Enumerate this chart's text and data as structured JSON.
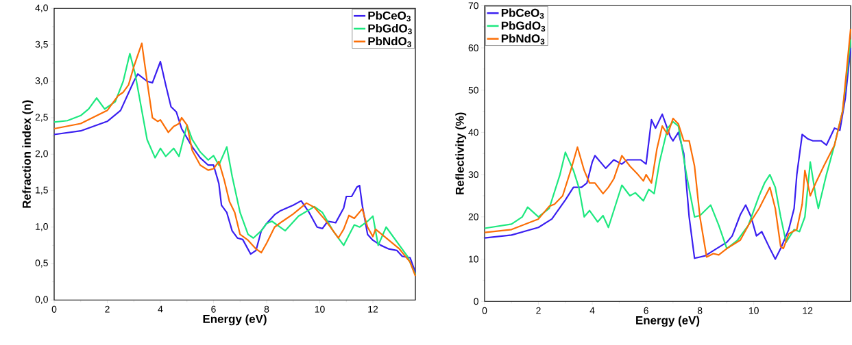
{
  "chart_data": [
    {
      "type": "line",
      "xlabel": "Energy (eV)",
      "ylabel": "Refraction index (n)",
      "xlim": [
        0,
        13.6
      ],
      "ylim": [
        0,
        4
      ],
      "xticks": [
        0,
        2,
        4,
        6,
        8,
        10,
        12
      ],
      "yticks": [
        {
          "value": 0,
          "label": "0,0"
        },
        {
          "value": 0.5,
          "label": "0,5"
        },
        {
          "value": 1,
          "label": "1,0"
        },
        {
          "value": 1.5,
          "label": "1,5"
        },
        {
          "value": 2,
          "label": "2,0"
        },
        {
          "value": 2.5,
          "label": "2,5"
        },
        {
          "value": 3,
          "label": "3,0"
        },
        {
          "value": 3.5,
          "label": "3,5"
        },
        {
          "value": 4,
          "label": "4,0"
        }
      ],
      "legend": "top right",
      "grid": false,
      "line_style": "solid",
      "marker": "none",
      "series": [
        {
          "name": "PbCeO$_{3}$",
          "color": "#3a1ff0",
          "x": [
            0,
            1,
            2,
            2.5,
            3,
            3.15,
            3.5,
            3.7,
            4.0,
            4.2,
            4.4,
            4.6,
            4.8,
            5.2,
            5.5,
            5.8,
            6.0,
            6.2,
            6.3,
            6.5,
            6.7,
            6.9,
            7.1,
            7.4,
            7.6,
            7.8,
            8.0,
            8.3,
            8.5,
            9.0,
            9.3,
            9.6,
            9.9,
            10.1,
            10.3,
            10.6,
            10.9,
            11.0,
            11.2,
            11.4,
            11.5,
            11.6,
            11.8,
            12.0,
            12.3,
            12.6,
            12.9,
            13.1,
            13.4,
            13.6
          ],
          "values": [
            2.27,
            2.32,
            2.45,
            2.6,
            3.0,
            3.1,
            3.0,
            2.98,
            3.27,
            2.95,
            2.65,
            2.58,
            2.35,
            2.1,
            1.95,
            1.85,
            1.85,
            1.6,
            1.3,
            1.2,
            0.95,
            0.85,
            0.83,
            0.63,
            0.68,
            0.95,
            1.05,
            1.17,
            1.22,
            1.3,
            1.36,
            1.2,
            1.0,
            0.98,
            1.08,
            1.06,
            1.26,
            1.42,
            1.42,
            1.55,
            1.57,
            1.3,
            0.9,
            0.82,
            0.75,
            0.7,
            0.68,
            0.6,
            0.58,
            0.38
          ]
        },
        {
          "name": "PbGdO$_{3}$",
          "color": "#1de87f",
          "x": [
            0,
            0.5,
            1.0,
            1.3,
            1.6,
            1.9,
            2.3,
            2.6,
            2.85,
            3.05,
            3.3,
            3.5,
            3.8,
            4.0,
            4.2,
            4.5,
            4.7,
            5.0,
            5.2,
            5.5,
            5.8,
            6.0,
            6.2,
            6.5,
            6.7,
            7.0,
            7.3,
            7.5,
            7.8,
            8.0,
            8.2,
            8.7,
            9.2,
            9.8,
            10.1,
            10.5,
            10.9,
            11.3,
            11.5,
            11.8,
            12.0,
            12.2,
            12.5,
            12.9,
            13.3,
            13.6
          ],
          "values": [
            2.44,
            2.46,
            2.53,
            2.62,
            2.77,
            2.62,
            2.72,
            3.0,
            3.38,
            3.1,
            2.6,
            2.2,
            1.95,
            2.08,
            1.97,
            2.08,
            1.97,
            2.4,
            2.2,
            2.03,
            1.92,
            1.98,
            1.85,
            2.1,
            1.7,
            1.2,
            0.9,
            0.85,
            0.95,
            1.05,
            1.08,
            0.95,
            1.15,
            1.28,
            1.2,
            0.95,
            0.75,
            1.03,
            1.0,
            1.08,
            1.15,
            0.75,
            1.0,
            0.8,
            0.6,
            0.35
          ]
        },
        {
          "name": "PbNdO$_{3}$",
          "color": "#fb6e06",
          "x": [
            0,
            1,
            2,
            2.4,
            2.6,
            2.8,
            3.0,
            3.3,
            3.5,
            3.7,
            3.9,
            4.0,
            4.3,
            4.5,
            4.7,
            4.8,
            5.0,
            5.2,
            5.5,
            5.8,
            6.0,
            6.2,
            6.4,
            6.6,
            6.8,
            7.0,
            7.3,
            7.6,
            7.8,
            8.0,
            8.3,
            8.6,
            9.0,
            9.5,
            9.8,
            10.2,
            10.7,
            10.9,
            11.1,
            11.3,
            11.6,
            11.8,
            12.0,
            12.1,
            12.5,
            13.0,
            13.4,
            13.6
          ],
          "values": [
            2.35,
            2.42,
            2.6,
            2.8,
            2.85,
            2.95,
            3.2,
            3.52,
            3.0,
            2.5,
            2.45,
            2.47,
            2.3,
            2.38,
            2.42,
            2.5,
            2.4,
            2.05,
            1.85,
            1.78,
            1.8,
            1.9,
            1.65,
            1.35,
            1.2,
            0.9,
            0.82,
            0.7,
            0.65,
            0.78,
            1.0,
            1.08,
            1.18,
            1.33,
            1.27,
            1.1,
            0.85,
            0.97,
            1.16,
            1.12,
            1.25,
            1.0,
            0.87,
            0.97,
            0.85,
            0.7,
            0.52,
            0.33
          ]
        }
      ]
    },
    {
      "type": "line",
      "xlabel": "Energy (eV)",
      "ylabel": "Reflectivity (%)",
      "xlim": [
        0,
        13.6
      ],
      "ylim": [
        0,
        70
      ],
      "xticks": [
        0,
        2,
        4,
        6,
        8,
        10,
        12
      ],
      "yticks": [
        0,
        10,
        20,
        30,
        40,
        50,
        60,
        70
      ],
      "legend": "top left",
      "grid": false,
      "line_style": "solid",
      "marker": "none",
      "series": [
        {
          "name": "PbCeO$_{3}$",
          "color": "#3a1ff0",
          "x": [
            0,
            1,
            2,
            2.5,
            3.0,
            3.3,
            3.6,
            3.8,
            4.0,
            4.1,
            4.5,
            4.8,
            5.1,
            5.3,
            5.8,
            6.0,
            6.2,
            6.35,
            6.6,
            6.9,
            7.0,
            7.2,
            7.4,
            7.6,
            7.8,
            8.0,
            8.2,
            8.5,
            9.0,
            9.2,
            9.5,
            9.7,
            9.9,
            10.1,
            10.3,
            10.6,
            10.8,
            11.0,
            11.3,
            11.5,
            11.6,
            11.8,
            12.0,
            12.2,
            12.5,
            12.7,
            13.0,
            13.2,
            13.4,
            13.6
          ],
          "values": [
            15,
            15.7,
            17.5,
            19.5,
            24,
            27,
            27,
            28,
            33,
            34.5,
            31.5,
            33.5,
            32.5,
            33.5,
            33.5,
            32.5,
            43,
            41,
            44.3,
            39,
            38,
            40,
            35,
            20,
            10.2,
            10.5,
            10.8,
            12,
            14,
            15.5,
            20.5,
            22.8,
            20,
            15.5,
            16.5,
            12.5,
            10,
            12.5,
            17,
            22,
            30,
            39.5,
            38.5,
            38,
            38,
            37,
            41,
            40.5,
            48,
            60
          ]
        },
        {
          "name": "PbGdO$_{3}$",
          "color": "#1de87f",
          "x": [
            0,
            1,
            1.4,
            1.6,
            2.0,
            2.4,
            2.8,
            3.0,
            3.3,
            3.5,
            3.7,
            3.9,
            4.2,
            4.4,
            4.6,
            5.1,
            5.4,
            5.6,
            5.9,
            6.1,
            6.3,
            6.5,
            6.8,
            7.0,
            7.2,
            7.5,
            7.8,
            8.0,
            8.4,
            8.7,
            9.0,
            9.4,
            9.8,
            10.2,
            10.4,
            10.6,
            10.8,
            11.0,
            11.2,
            11.5,
            11.7,
            11.9,
            12.1,
            12.3,
            12.4,
            12.7,
            13.0,
            13.3,
            13.6
          ],
          "values": [
            17.3,
            18.3,
            20,
            22.3,
            20,
            22,
            30,
            35.3,
            31,
            27,
            20,
            21.5,
            18.8,
            20.3,
            17.5,
            27.5,
            25,
            25.7,
            23.8,
            26.5,
            25.5,
            33,
            41,
            42.5,
            41.5,
            30,
            20,
            20.3,
            22.8,
            18,
            12.5,
            14.5,
            18,
            25,
            28,
            30,
            27,
            20,
            14,
            17,
            16.5,
            20,
            33,
            25,
            22,
            30,
            37,
            45,
            62
          ]
        },
        {
          "name": "PbNdO$_{3}$",
          "color": "#fb6e06",
          "x": [
            0,
            1,
            2,
            2.4,
            2.6,
            2.9,
            3.2,
            3.45,
            3.7,
            3.9,
            4.1,
            4.4,
            4.6,
            4.8,
            5.1,
            5.4,
            5.7,
            5.9,
            6.0,
            6.2,
            6.4,
            6.6,
            6.8,
            7.0,
            7.2,
            7.4,
            7.6,
            7.8,
            8.0,
            8.25,
            8.5,
            8.7,
            9.0,
            9.5,
            9.8,
            10.2,
            10.6,
            10.8,
            11.0,
            11.1,
            11.3,
            11.6,
            11.8,
            11.9,
            12.1,
            12.3,
            12.6,
            13.0,
            13.3,
            13.6
          ],
          "values": [
            16.3,
            17,
            19.5,
            22.5,
            23,
            25,
            31,
            36.5,
            31,
            28,
            28,
            25.5,
            27,
            29,
            34.5,
            32,
            30,
            28.5,
            30,
            28,
            36,
            41.5,
            39.5,
            43.3,
            42,
            38,
            38,
            32,
            20,
            10.5,
            11.3,
            11,
            12.5,
            14.5,
            18,
            22,
            27,
            22,
            13,
            12.5,
            16,
            17,
            23,
            31,
            25,
            28,
            32,
            37,
            45,
            64.5
          ]
        }
      ]
    }
  ]
}
